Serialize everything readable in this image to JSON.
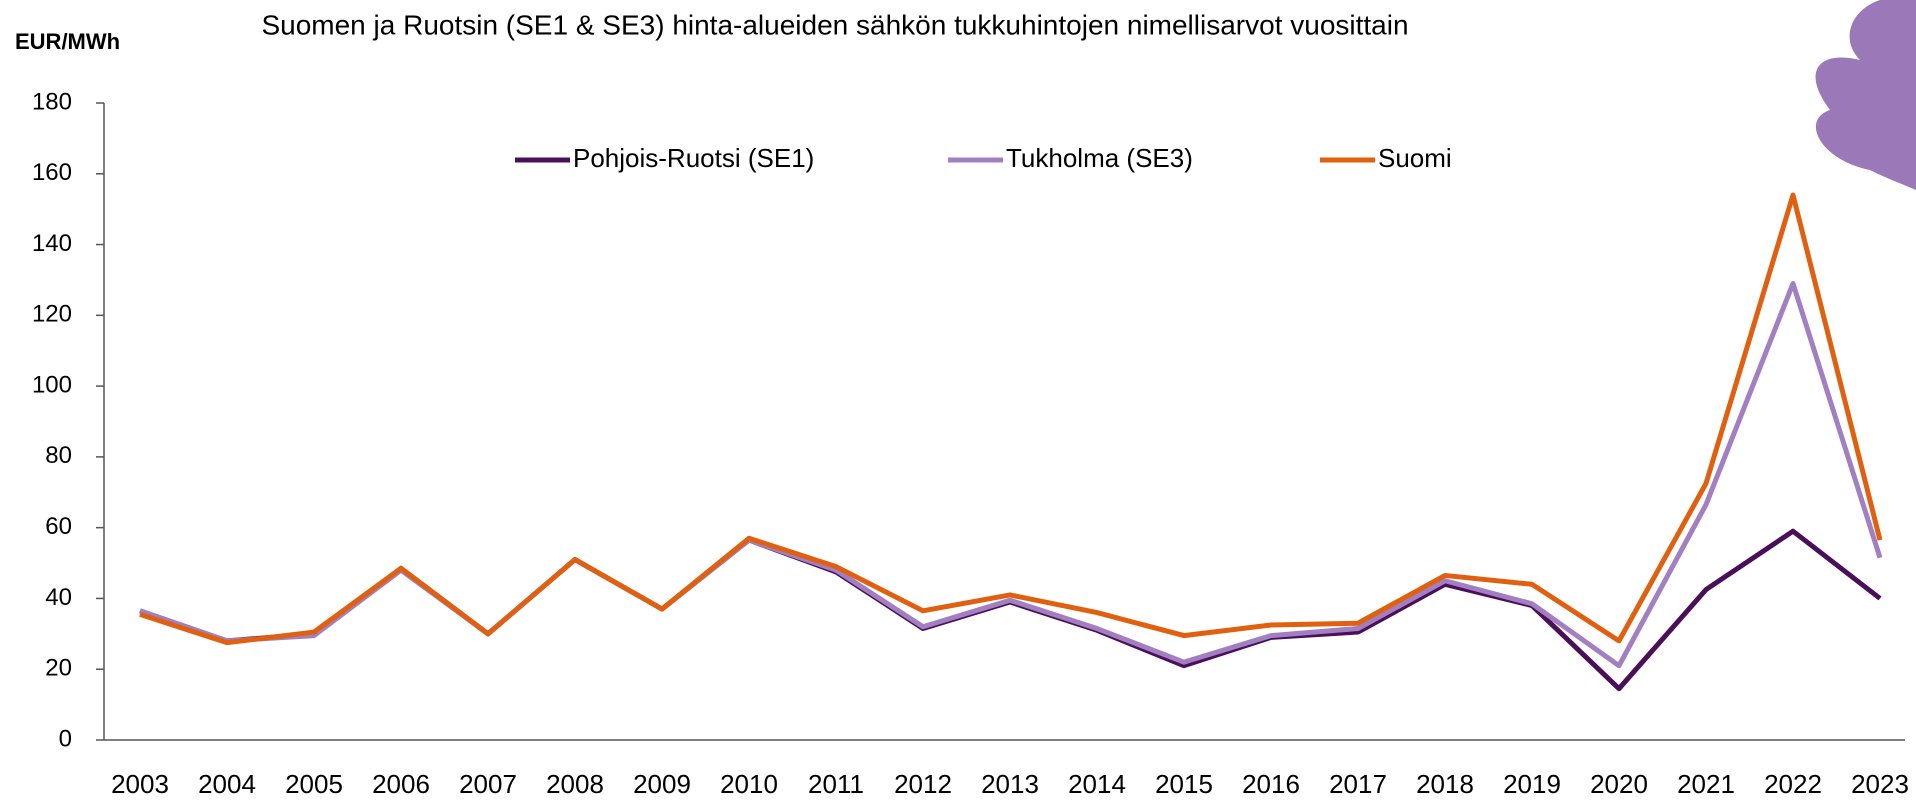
{
  "chart_data": {
    "type": "line",
    "title": "Suomen ja Ruotsin (SE1 & SE3) hinta-alueiden sähkön tukkuhintojen nimellisarvot vuosittain",
    "y_label": "EUR/MWh",
    "categories": [
      "2003",
      "2004",
      "2005",
      "2006",
      "2007",
      "2008",
      "2009",
      "2010",
      "2011",
      "2012",
      "2013",
      "2014",
      "2015",
      "2016",
      "2017",
      "2018",
      "2019",
      "2020",
      "2021",
      "2022",
      "2023"
    ],
    "series": [
      {
        "name": "Pohjois-Ruotsi (SE1)",
        "color": "#4b0f5a",
        "values": [
          36.5,
          28,
          30,
          48.5,
          30,
          51,
          37,
          56.5,
          47.5,
          31.5,
          39,
          31,
          21,
          29,
          30.5,
          44,
          38,
          14.5,
          42.5,
          59,
          40
        ]
      },
      {
        "name": "Tukholma (SE3)",
        "color": "#a27fc1",
        "values": [
          36.5,
          28,
          29.5,
          48,
          30,
          51,
          37,
          56.5,
          48,
          32,
          39.5,
          31.5,
          22,
          29.5,
          31.5,
          45,
          38.5,
          21,
          66.5,
          129,
          51.5
        ]
      },
      {
        "name": "Suomi",
        "color": "#e0600f",
        "values": [
          35.5,
          27.5,
          30.5,
          48.5,
          30,
          51,
          37,
          57,
          49,
          36.5,
          41,
          36,
          29.5,
          32.5,
          33,
          46.5,
          44,
          28,
          72.5,
          154,
          56.5
        ]
      }
    ],
    "ylim": [
      0,
      180
    ],
    "yticks": [
      0,
      20,
      40,
      60,
      80,
      100,
      120,
      140,
      160,
      180
    ],
    "legend": "top"
  }
}
